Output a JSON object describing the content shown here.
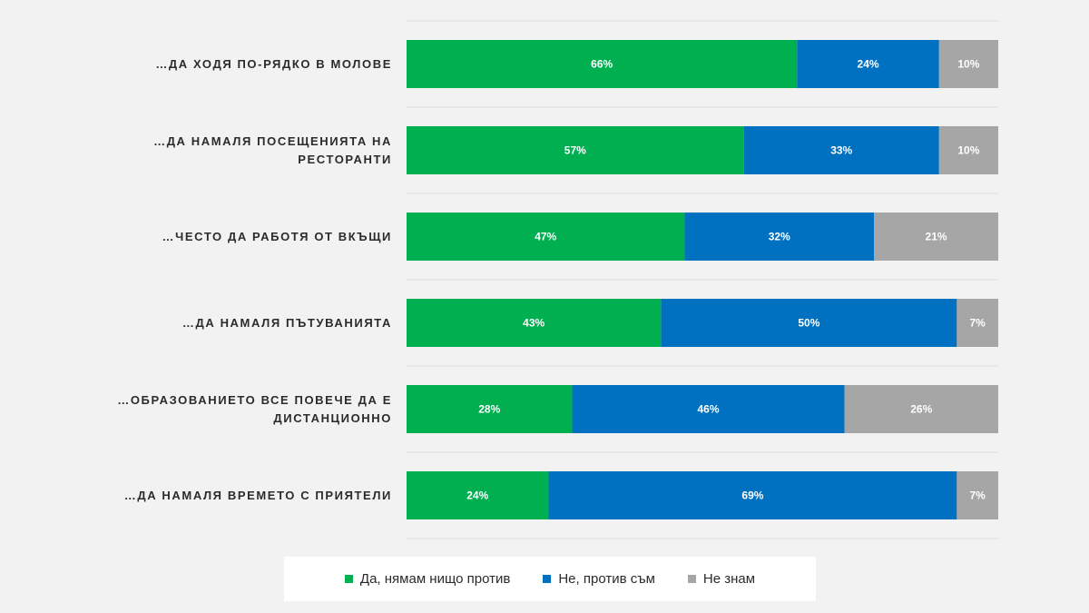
{
  "chart_data": {
    "type": "bar",
    "orientation": "horizontal",
    "stacked": true,
    "categories": [
      "…ДА ХОДЯ ПО-РЯДКО В МОЛОВЕ",
      "…ДА НАМАЛЯ ПОСЕЩЕНИЯТА НА РЕСТОРАНТИ",
      "…ЧЕСТО ДА РАБОТЯ ОТ ВКЪЩИ",
      "…ДА НАМАЛЯ ПЪТУВАНИЯТА",
      "…ОБРАЗОВАНИЕТО ВСЕ ПОВЕЧЕ ДА Е ДИСТАНЦИОННО",
      "…ДА НАМАЛЯ ВРЕМЕТО С ПРИЯТЕЛИ"
    ],
    "category_lines": [
      [
        "…ДА ХОДЯ ПО-РЯДКО В МОЛОВЕ"
      ],
      [
        "…ДА НАМАЛЯ ПОСЕЩЕНИЯТА НА",
        "РЕСТОРАНТИ"
      ],
      [
        "…ЧЕСТО ДА РАБОТЯ ОТ ВКЪЩИ"
      ],
      [
        "…ДА НАМАЛЯ ПЪТУВАНИЯТА"
      ],
      [
        "…ОБРАЗОВАНИЕТО ВСЕ ПОВЕЧЕ ДА Е",
        "ДИСТАНЦИОННО"
      ],
      [
        "…ДА НАМАЛЯ ВРЕМЕТО С ПРИЯТЕЛИ"
      ]
    ],
    "series": [
      {
        "name": "Да, нямам нищо против",
        "color": "#00b050",
        "values": [
          66,
          57,
          47,
          43,
          28,
          24
        ]
      },
      {
        "name": "Не, против съм",
        "color": "#0070c0",
        "values": [
          24,
          33,
          32,
          50,
          46,
          69
        ]
      },
      {
        "name": "Не знам",
        "color": "#a6a6a6",
        "values": [
          10,
          10,
          21,
          7,
          26,
          7
        ]
      }
    ],
    "data_labels": [
      [
        "66%",
        "57%",
        "47%",
        "43%",
        "28%",
        "24%"
      ],
      [
        "24%",
        "33%",
        "32%",
        "50%",
        "46%",
        "69%"
      ],
      [
        "10%",
        "10%",
        "21%",
        "7%",
        "26%",
        "7%"
      ]
    ],
    "xlim": [
      0,
      100
    ],
    "legend_position": "bottom",
    "grid": false
  }
}
